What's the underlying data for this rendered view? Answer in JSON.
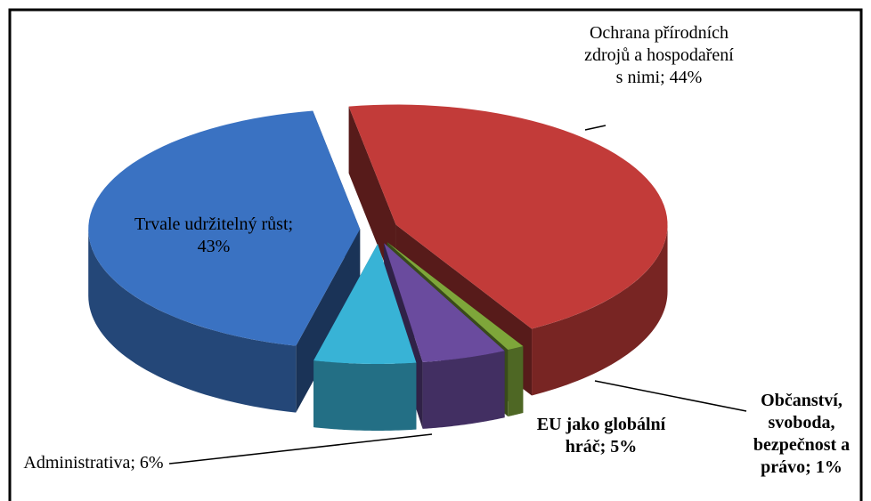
{
  "chart_data": {
    "type": "pie",
    "values": [
      44,
      1,
      5,
      6,
      43
    ],
    "value_labels": [
      "Ochrana přírodních zdrojů a hospodaření s nimi; 44%",
      "Občanství, svoboda, bezpečnost a právo; 1%",
      "EU jako globální hráč; 5%",
      "Administrativa; 6%",
      "Trvale udržitelný růst; 43%"
    ],
    "colors": [
      "#c23b39",
      "#7ea63a",
      "#6a4b9e",
      "#38b3d6",
      "#3a72c2"
    ]
  }
}
